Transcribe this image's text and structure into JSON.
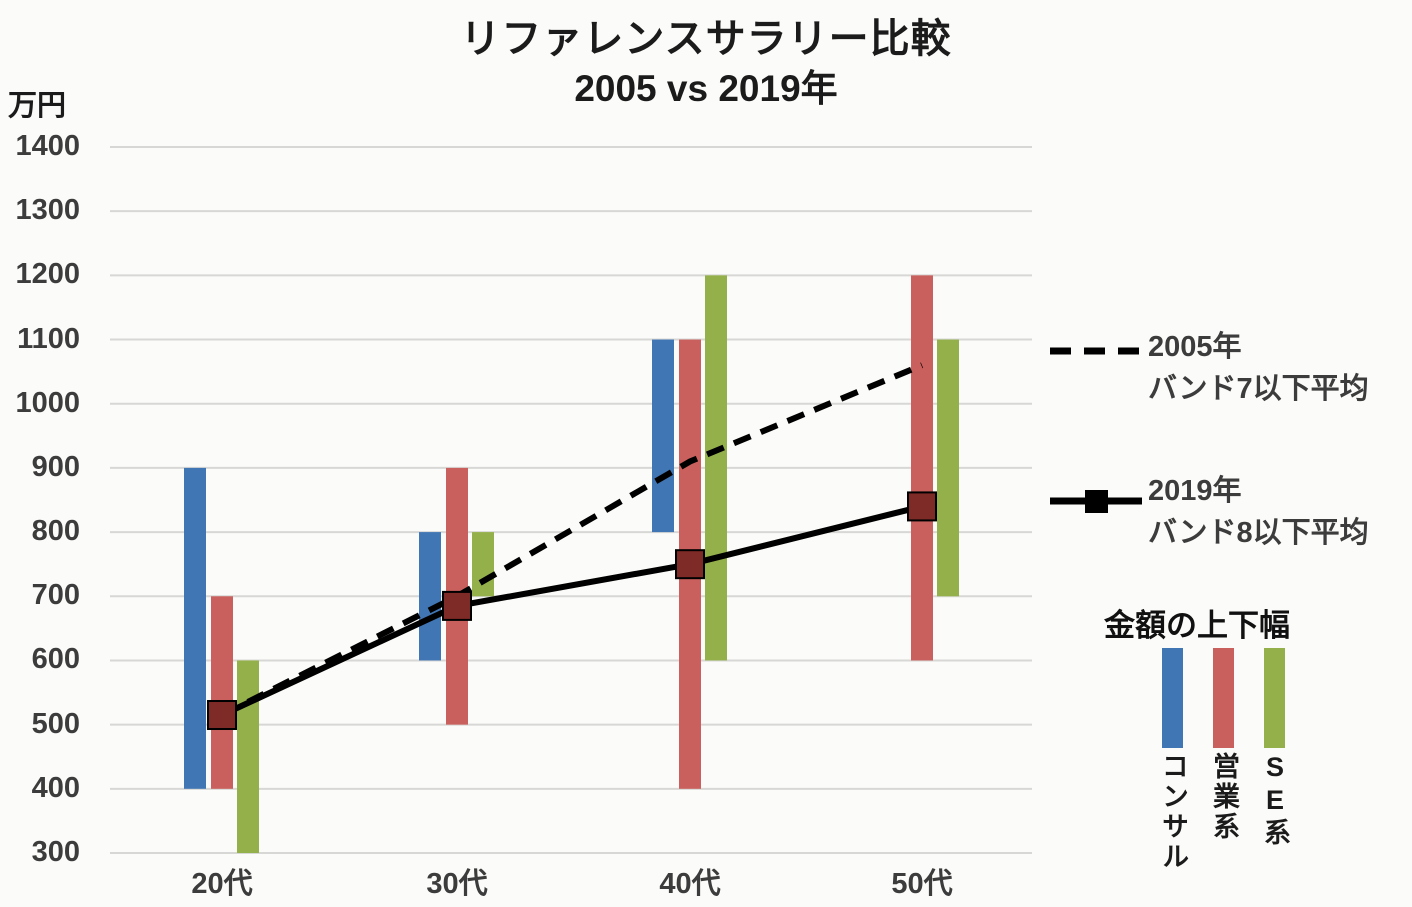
{
  "title": {
    "line1": "リファレンスサラリー比較",
    "line2": "2005 vs 2019年"
  },
  "y_axis_unit": "万円",
  "chart_data": {
    "type": "combo: floating-bar ranges + line",
    "title": "リファレンスサラリー比較 2005 vs 2019年",
    "unit": "万円",
    "categories": [
      "20代",
      "30代",
      "40代",
      "50代"
    ],
    "ylim": [
      300,
      1400
    ],
    "ytick_step": 100,
    "grid": "horizontal",
    "legend_position": "right",
    "range_series": [
      {
        "name": "コンサル",
        "color": "#4176b4",
        "ranges": [
          [
            400,
            900
          ],
          [
            600,
            800
          ],
          [
            800,
            1100
          ],
          null
        ]
      },
      {
        "name": "営業系",
        "color": "#c9605d",
        "ranges": [
          [
            400,
            700
          ],
          [
            500,
            900
          ],
          [
            400,
            1100
          ],
          [
            600,
            1200
          ]
        ]
      },
      {
        "name": "SE系",
        "color": "#94b04a",
        "ranges": [
          [
            300,
            600
          ],
          [
            700,
            800
          ],
          [
            600,
            1200
          ],
          [
            700,
            1100
          ]
        ]
      }
    ],
    "line_series": [
      {
        "name": "2005年 バンド7以下平均",
        "style": "dashed",
        "color": "#000000",
        "values": [
          515,
          700,
          910,
          1060
        ]
      },
      {
        "name": "2019年 バンド8以下平均",
        "style": "solid",
        "color": "#000000",
        "marker": "square",
        "marker_color": "#7e2a27",
        "values": [
          515,
          685,
          750,
          840
        ]
      }
    ]
  },
  "legend": {
    "line_2005": {
      "label_line1": "2005年",
      "label_line2": "バンド7以下平均"
    },
    "line_2019": {
      "label_line1": "2019年",
      "label_line2": "バンド8以下平均"
    },
    "range_title": "金額の上下幅",
    "range_items": [
      {
        "label": "コンサル",
        "color": "#4176b4"
      },
      {
        "label": "営業系",
        "color": "#c9605d"
      },
      {
        "label": "SE系",
        "color": "#94b04a"
      }
    ]
  },
  "colors": {
    "background": "#fbfbf9",
    "gridline": "#d7d7d5",
    "tick_text": "#3c3c3c",
    "line": "#000000",
    "marker_fill": "#7e2a27"
  }
}
